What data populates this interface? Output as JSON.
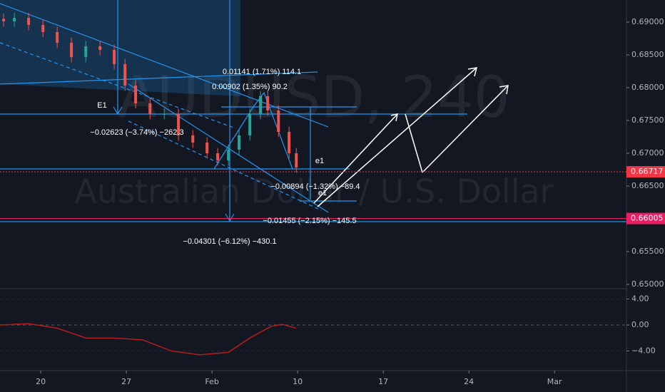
{
  "chart_data": [
    {
      "type": "candlestick",
      "title": "AUDUSD, 240",
      "subtitle": "Australian Dollar / U.S. Dollar",
      "up_color": "#26a69a",
      "down_color": "#ef5350",
      "x": [
        -2.17,
        -1.54,
        -0.71,
        0.13,
        0.96,
        1.79,
        2.63,
        3.46,
        4.29,
        4.92,
        5.54,
        6.38,
        7.21,
        8.04,
        8.88,
        9.71,
        10.33,
        10.96,
        11.58,
        12.21,
        12.83,
        13.25,
        13.88,
        14.5,
        14.92
      ],
      "open": [
        0.6905,
        0.69011,
        0.69065,
        0.68957,
        0.68848,
        0.68685,
        0.68467,
        0.6863,
        0.68576,
        0.68359,
        0.68033,
        0.67761,
        0.67598,
        0.67598,
        0.67272,
        0.67163,
        0.67,
        0.66891,
        0.67054,
        0.67272,
        0.67598,
        0.6787,
        0.67652,
        0.67326,
        0.67
      ],
      "high": [
        0.6913,
        0.69145,
        0.69145,
        0.69037,
        0.68928,
        0.68765,
        0.6871,
        0.6871,
        0.68656,
        0.68439,
        0.68113,
        0.67841,
        0.67678,
        0.67678,
        0.67352,
        0.67243,
        0.6708,
        0.67134,
        0.67352,
        0.67678,
        0.6795,
        0.6795,
        0.67732,
        0.67406,
        0.6708
      ],
      "low": [
        0.68931,
        0.68931,
        0.68877,
        0.68768,
        0.68605,
        0.68387,
        0.68387,
        0.68496,
        0.68279,
        0.67953,
        0.67681,
        0.67518,
        0.67518,
        0.67192,
        0.67083,
        0.6692,
        0.66811,
        0.66811,
        0.66974,
        0.67192,
        0.67518,
        0.67572,
        0.67246,
        0.6692,
        0.66703
      ],
      "close": [
        0.69011,
        0.69065,
        0.68957,
        0.68848,
        0.68685,
        0.68467,
        0.6863,
        0.68576,
        0.68359,
        0.68033,
        0.67761,
        0.67598,
        0.67598,
        0.67272,
        0.67163,
        0.67,
        0.66891,
        0.67054,
        0.67272,
        0.67598,
        0.6787,
        0.67652,
        0.67326,
        0.67,
        0.66783
      ],
      "xlim": [
        -2.38,
        34.2
      ],
      "ylim": [
        0.64935,
        0.69337
      ],
      "yticks": [
        {
          "value": 0.65,
          "label": "0.65000"
        },
        {
          "value": 0.655,
          "label": "0.65500"
        },
        {
          "value": 0.66,
          "label": "0.66000"
        },
        {
          "value": 0.665,
          "label": "0.66500"
        },
        {
          "value": 0.67,
          "label": "0.67000"
        },
        {
          "value": 0.675,
          "label": "0.67500"
        },
        {
          "value": 0.68,
          "label": "0.68000"
        },
        {
          "value": 0.685,
          "label": "0.68500"
        },
        {
          "value": 0.69,
          "label": "0.69000"
        }
      ],
      "hlines": [
        {
          "value": 0.66717,
          "color": "#f23645"
        },
        {
          "value": 0.66005,
          "color": "#e91e63"
        }
      ],
      "annotations": [
        "0.01141 (1.71%) 114.1",
        "0.00902 (1.35%) 90.2",
        "E1",
        "−0.02623 (−3.74%) −262.3",
        "e1",
        "−0.00894 (−1.32%) −89.4",
        "e1",
        "−0.01455 (−2.15%) −145.5",
        "−0.04301 (−6.12%) −430.1"
      ]
    },
    {
      "type": "line",
      "color": "#b71c1c",
      "x": [
        -2.38,
        -0.71,
        0.96,
        2.63,
        4.29,
        5.96,
        7.63,
        9.29,
        10.96,
        12.21,
        13.46,
        14.08,
        14.92
      ],
      "values": [
        0,
        0.2,
        -0.5,
        -2,
        -2,
        -2.3,
        -4,
        -4.6,
        -4.2,
        -2,
        -0.2,
        0.1,
        -0.5
      ],
      "xlim": [
        -2.38,
        34.2
      ],
      "ylim": [
        -7.03,
        5.6
      ],
      "yticks": [
        {
          "value": 4,
          "label": "4.00"
        },
        {
          "value": 0,
          "label": "0.00"
        },
        {
          "value": -4,
          "label": "−4.00"
        }
      ],
      "xticks": [
        {
          "value": 0,
          "label": "20"
        },
        {
          "value": 5,
          "label": "27"
        },
        {
          "value": 10,
          "label": "Feb"
        },
        {
          "value": 15,
          "label": "10"
        },
        {
          "value": 20,
          "label": "17"
        },
        {
          "value": 25,
          "label": "24"
        },
        {
          "value": 30,
          "label": "Mar"
        }
      ]
    }
  ]
}
